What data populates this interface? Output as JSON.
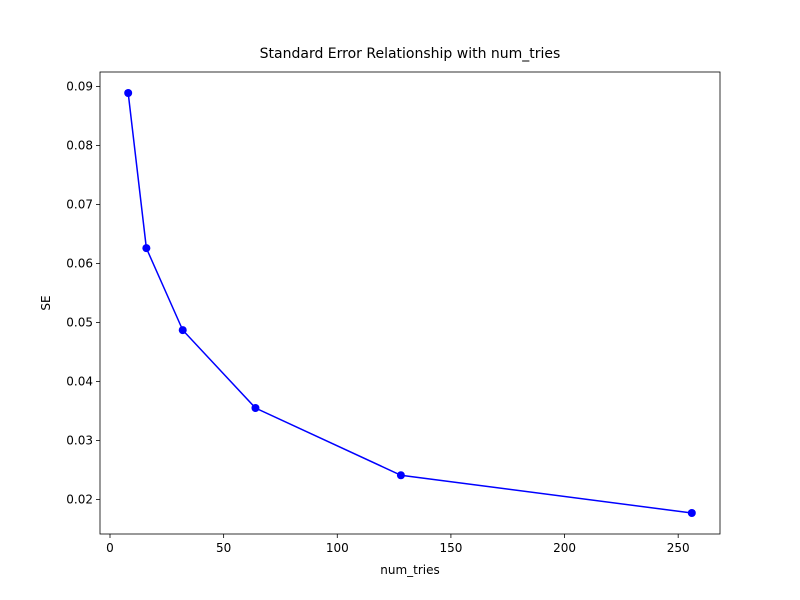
{
  "chart_data": {
    "type": "line",
    "title": "Standard Error Relationship with num_tries",
    "xlabel": "num_tries",
    "ylabel": "SE",
    "x": [
      8,
      16,
      32,
      64,
      128,
      256
    ],
    "series": [
      {
        "name": "SE",
        "color": "#0000ff",
        "values": [
          0.0889,
          0.0626,
          0.0487,
          0.0355,
          0.0241,
          0.0177
        ]
      }
    ],
    "xlim": [
      -4.4,
      268.4
    ],
    "xticks": [
      0,
      50,
      100,
      150,
      200,
      250
    ],
    "ylim": [
      0.01414,
      0.09246
    ],
    "yticks": [
      0.02,
      0.03,
      0.04,
      0.05,
      0.06,
      0.07,
      0.08,
      0.09
    ],
    "grid": false
  }
}
